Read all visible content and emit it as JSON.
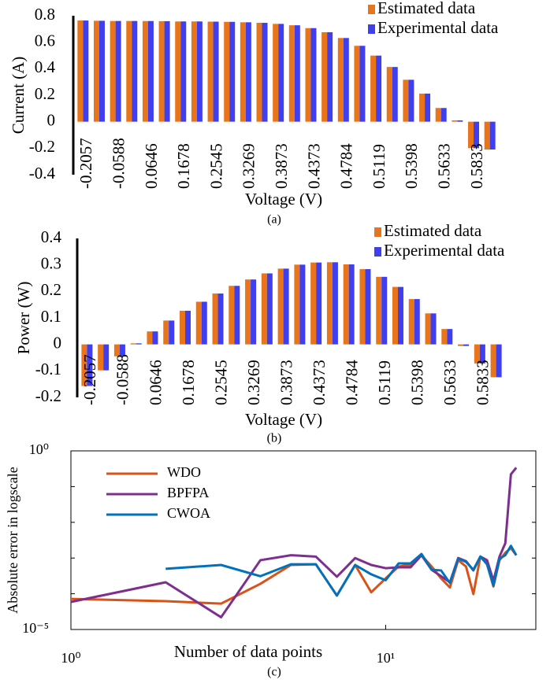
{
  "chart_data": [
    {
      "type": "bar",
      "caption": "(a)",
      "x_label": "Voltage (V)",
      "y_label": "Current (A)",
      "categories": [
        "-0.2057",
        null,
        "-0.0588",
        null,
        "0.0646",
        null,
        "0.1678",
        null,
        "0.2545",
        null,
        "0.3269",
        null,
        "0.3873",
        null,
        "0.4373",
        null,
        "0.4784",
        null,
        "0.5119",
        null,
        "0.5398",
        null,
        "0.5633",
        null,
        "0.5833",
        null
      ],
      "series": [
        {
          "name": "Estimated data",
          "color": "#e8741c",
          "values": [
            0.764,
            0.762,
            0.7605,
            0.7605,
            0.76,
            0.759,
            0.757,
            0.757,
            0.7555,
            0.754,
            0.7505,
            0.7465,
            0.7385,
            0.728,
            0.7065,
            0.6755,
            0.632,
            0.573,
            0.499,
            0.413,
            0.3165,
            0.212,
            0.1035,
            0.01,
            -0.2,
            -0.21
          ]
        },
        {
          "name": "Experimental data",
          "color": "#3f3ff0",
          "values": [
            0.764,
            0.762,
            0.7605,
            0.7605,
            0.76,
            0.759,
            0.757,
            0.757,
            0.7555,
            0.754,
            0.7505,
            0.7465,
            0.7385,
            0.728,
            0.7065,
            0.6755,
            0.632,
            0.573,
            0.499,
            0.413,
            0.3165,
            0.212,
            0.1035,
            0.01,
            -0.2,
            -0.21
          ]
        }
      ],
      "ylim": [
        -0.4,
        0.8
      ],
      "yticks": [
        -0.4,
        -0.2,
        0,
        0.2,
        0.4,
        0.6,
        0.8
      ],
      "legend": "upper right"
    },
    {
      "type": "bar",
      "caption": "(b)",
      "x_label": "Voltage (V)",
      "y_label": "Power (W)",
      "categories": [
        "-0.2057",
        null,
        "-0.0588",
        null,
        "0.0646",
        null,
        "0.1678",
        null,
        "0.2545",
        null,
        "0.3269",
        null,
        "0.3873",
        null,
        "0.4373",
        null,
        "0.4784",
        null,
        "0.5119",
        null,
        "0.5398",
        null,
        "0.5633",
        null,
        "0.5833",
        null
      ],
      "series": [
        {
          "name": "Estimated data",
          "color": "#e8741c",
          "values": [
            -0.157,
            -0.098,
            -0.045,
            0.004,
            0.049,
            0.09,
            0.127,
            0.161,
            0.192,
            0.221,
            0.245,
            0.268,
            0.286,
            0.301,
            0.309,
            0.31,
            0.302,
            0.284,
            0.255,
            0.217,
            0.171,
            0.117,
            0.058,
            -0.006,
            -0.072,
            -0.124
          ]
        },
        {
          "name": "Experimental data",
          "color": "#3f3ff0",
          "values": [
            -0.157,
            -0.098,
            -0.045,
            0.004,
            0.049,
            0.09,
            0.127,
            0.161,
            0.192,
            0.221,
            0.245,
            0.268,
            0.286,
            0.301,
            0.309,
            0.31,
            0.302,
            0.284,
            0.255,
            0.217,
            0.171,
            0.117,
            0.058,
            -0.006,
            -0.072,
            -0.124
          ]
        }
      ],
      "ylim": [
        -0.2,
        0.4
      ],
      "yticks": [
        -0.2,
        -0.1,
        0,
        0.1,
        0.2,
        0.3,
        0.4
      ],
      "legend": "upper right"
    },
    {
      "type": "line",
      "caption": "(c)",
      "x_label": "Number of data points",
      "y_label": "Absolute error in logscale",
      "x": [
        1,
        2,
        3,
        4,
        5,
        6,
        7,
        8,
        9,
        10,
        11,
        12,
        13,
        14,
        15,
        16,
        17,
        18,
        19,
        20,
        21,
        22,
        23,
        24,
        25,
        26
      ],
      "series": [
        {
          "name": "WDO",
          "color": "#d95319",
          "values": [
            7.2e-05,
            6.2e-05,
            5.3e-05,
            0.00019,
            0.00064,
            0.00067,
            8.9e-05,
            0.00064,
            0.00011,
            0.00027,
            0.00058,
            0.00064,
            0.0012,
            0.00058,
            0.00027,
            0.00015,
            0.00087,
            0.00058,
            9.8e-05,
            0.0011,
            0.00067,
            0.00016,
            0.00087,
            0.0014,
            0.0019,
            0.0012
          ]
        },
        {
          "name": "BPFPA",
          "color": "#7e2f8e",
          "values": [
            5.9e-05,
            0.00021,
            2.2e-05,
            0.00087,
            0.0012,
            0.0011,
            0.0003,
            0.001,
            0.00064,
            0.00052,
            0.00055,
            0.00055,
            0.0012,
            0.00047,
            0.00031,
            0.00021,
            0.001,
            0.00082,
            0.00045,
            0.0011,
            0.00087,
            0.00023,
            0.0011,
            0.0026,
            0.22,
            0.34
          ]
        },
        {
          "name": "CWOA",
          "color": "#0072bd",
          "values": [
            null,
            0.0005,
            0.00064,
            0.00031,
            0.00067,
            0.00067,
            8.9e-05,
            0.00064,
            0.00035,
            0.00024,
            0.00071,
            0.00071,
            0.0013,
            0.00047,
            0.00045,
            0.0002,
            0.00096,
            0.00078,
            0.00047,
            0.0011,
            0.00067,
            0.00017,
            0.00096,
            0.0012,
            0.0022,
            0.0012
          ]
        }
      ],
      "xscale": "log",
      "yscale": "log",
      "xlim": [
        1,
        30
      ],
      "ylim": [
        1e-05,
        1
      ],
      "xticks": [
        {
          "value": 1,
          "label": "10⁰"
        },
        {
          "value": 10,
          "label": "10¹"
        }
      ],
      "yticks": [
        {
          "value": 1e-05,
          "label": "10⁻⁵"
        },
        {
          "value": 1,
          "label": "10⁰"
        }
      ],
      "y_minor_ticks": [
        0.0001,
        0.001,
        0.01,
        0.1
      ],
      "legend": "upper left"
    }
  ]
}
